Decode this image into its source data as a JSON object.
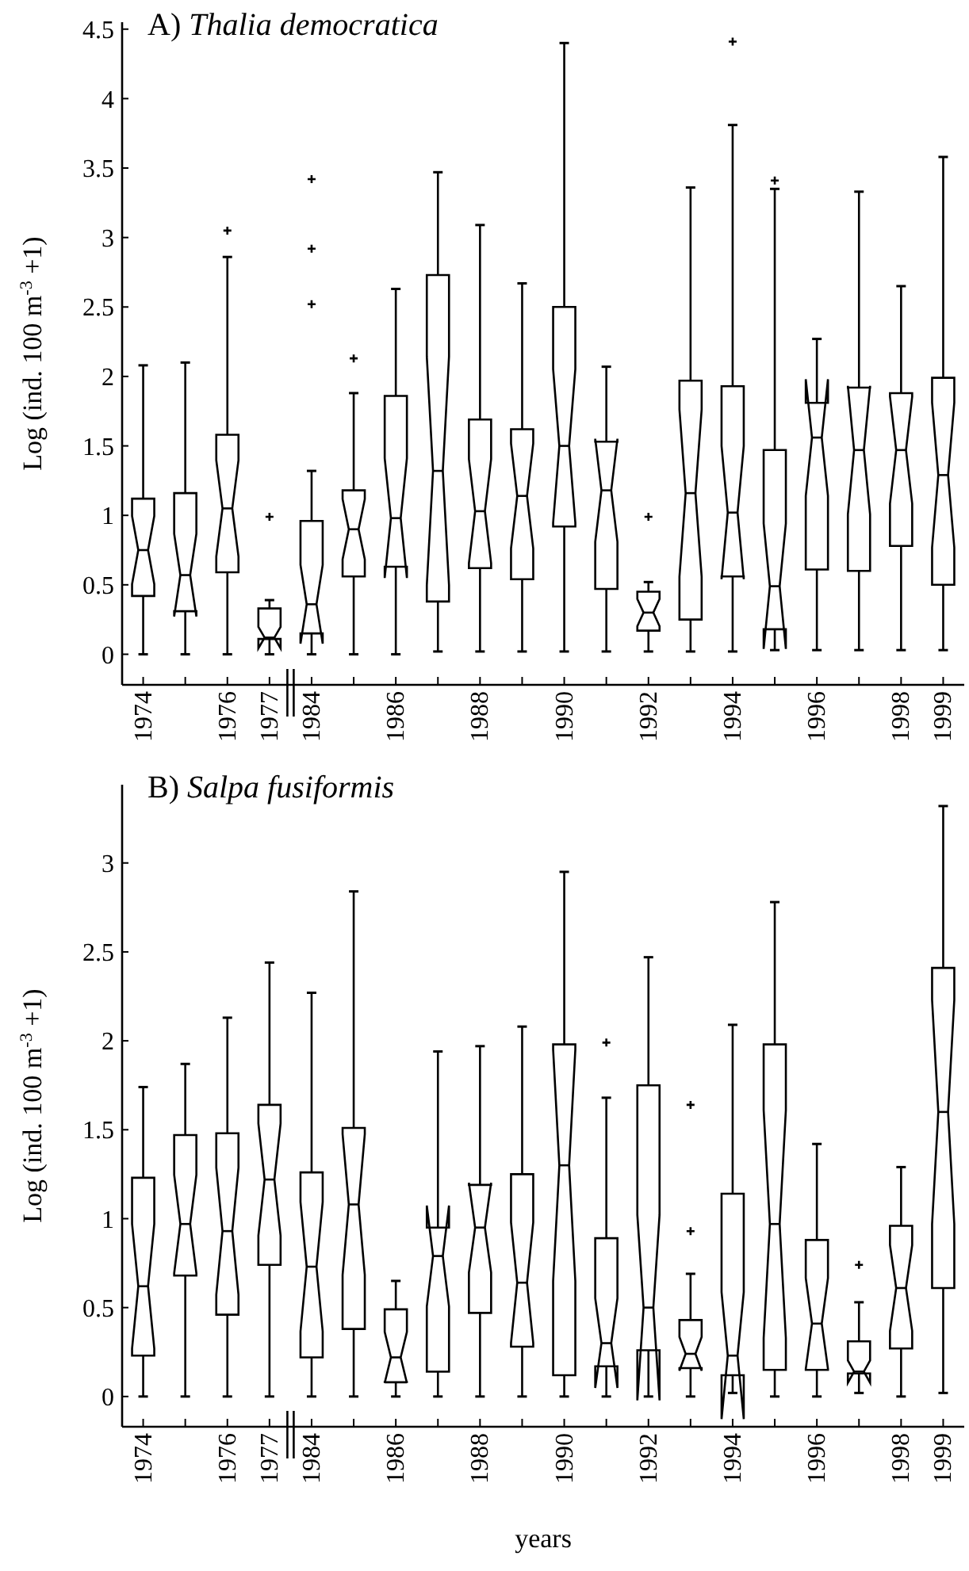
{
  "chart_data": [
    {
      "type": "box",
      "title": "A) Thalia democratica",
      "ylabel": "Log (ind. 100 m$^{-3}$ +1)",
      "categories": [
        "1974",
        null,
        "1976",
        "1977",
        "1984",
        null,
        "1986",
        null,
        "1988",
        null,
        "1990",
        null,
        "1992",
        null,
        "1994",
        null,
        "1996",
        null,
        "1998",
        "1999"
      ],
      "ylim": [
        -0.22,
        4.55
      ],
      "yticks": [
        0,
        0.5,
        1,
        1.5,
        2,
        2.5,
        3,
        3.5,
        4,
        4.5
      ],
      "boxes": [
        {
          "low": 0,
          "q1": 0.42,
          "median": 0.75,
          "q3": 1.12,
          "high": 2.08
        },
        {
          "low": 0,
          "q1": 0.31,
          "median": 0.57,
          "q3": 1.16,
          "high": 2.1
        },
        {
          "low": 0,
          "q1": 0.59,
          "median": 1.05,
          "q3": 1.58,
          "high": 2.86,
          "outliers": [
            3.05
          ]
        },
        {
          "low": 0,
          "q1": 0.11,
          "median": 0.12,
          "q3": 0.33,
          "high": 0.39,
          "outliers": [
            0.99
          ]
        },
        {
          "low": 0,
          "q1": 0.15,
          "median": 0.36,
          "q3": 0.96,
          "high": 1.32,
          "outliers": [
            2.52,
            2.92,
            3.42
          ]
        },
        {
          "low": 0,
          "q1": 0.56,
          "median": 0.9,
          "q3": 1.18,
          "high": 1.88,
          "outliers": [
            2.13
          ]
        },
        {
          "low": 0,
          "q1": 0.63,
          "median": 0.98,
          "q3": 1.86,
          "high": 2.63
        },
        {
          "low": 0.02,
          "q1": 0.38,
          "median": 1.32,
          "q3": 2.73,
          "high": 3.47
        },
        {
          "low": 0.02,
          "q1": 0.62,
          "median": 1.03,
          "q3": 1.69,
          "high": 3.09
        },
        {
          "low": 0.02,
          "q1": 0.54,
          "median": 1.14,
          "q3": 1.62,
          "high": 2.67
        },
        {
          "low": 0.02,
          "q1": 0.92,
          "median": 1.5,
          "q3": 2.5,
          "high": 4.4
        },
        {
          "low": 0.02,
          "q1": 0.47,
          "median": 1.18,
          "q3": 1.53,
          "high": 2.07
        },
        {
          "low": 0.02,
          "q1": 0.17,
          "median": 0.3,
          "q3": 0.45,
          "high": 0.52,
          "outliers": [
            0.99
          ]
        },
        {
          "low": 0.02,
          "q1": 0.25,
          "median": 1.16,
          "q3": 1.97,
          "high": 3.36
        },
        {
          "low": 0.02,
          "q1": 0.56,
          "median": 1.02,
          "q3": 1.93,
          "high": 3.81,
          "outliers": [
            4.41
          ]
        },
        {
          "low": 0.03,
          "q1": 0.18,
          "median": 0.49,
          "q3": 1.47,
          "high": 3.35,
          "outliers": [
            3.41
          ]
        },
        {
          "low": 0.03,
          "q1": 0.61,
          "median": 1.56,
          "q3": 1.81,
          "high": 2.27
        },
        {
          "low": 0.03,
          "q1": 0.6,
          "median": 1.47,
          "q3": 1.92,
          "high": 3.33
        },
        {
          "low": 0.03,
          "q1": 0.78,
          "median": 1.47,
          "q3": 1.88,
          "high": 2.65
        },
        {
          "low": 0.03,
          "q1": 0.5,
          "median": 1.29,
          "q3": 1.99,
          "high": 3.58
        }
      ]
    },
    {
      "type": "box",
      "title": "B) Salpa fusiformis",
      "ylabel": "Log (ind. 100 m$^{-3}$ +1)",
      "xlabel": "years",
      "categories": [
        "1974",
        null,
        "1976",
        "1977",
        "1984",
        null,
        "1986",
        null,
        "1988",
        null,
        "1990",
        null,
        "1992",
        null,
        "1994",
        null,
        "1996",
        null,
        "1998",
        "1999"
      ],
      "ylim": [
        -0.17,
        3.44
      ],
      "yticks": [
        0,
        0.5,
        1,
        1.5,
        2,
        2.5,
        3
      ],
      "boxes": [
        {
          "low": 0,
          "q1": 0.23,
          "median": 0.62,
          "q3": 1.23,
          "high": 1.74
        },
        {
          "low": 0,
          "q1": 0.68,
          "median": 0.97,
          "q3": 1.47,
          "high": 1.87
        },
        {
          "low": 0,
          "q1": 0.46,
          "median": 0.93,
          "q3": 1.48,
          "high": 2.13
        },
        {
          "low": 0,
          "q1": 0.74,
          "median": 1.22,
          "q3": 1.64,
          "high": 2.44
        },
        {
          "low": 0,
          "q1": 0.22,
          "median": 0.73,
          "q3": 1.26,
          "high": 2.27
        },
        {
          "low": 0,
          "q1": 0.38,
          "median": 1.08,
          "q3": 1.51,
          "high": 2.84
        },
        {
          "low": 0,
          "q1": 0.08,
          "median": 0.22,
          "q3": 0.49,
          "high": 0.65
        },
        {
          "low": 0,
          "q1": 0.14,
          "median": 0.79,
          "q3": 0.95,
          "high": 1.94
        },
        {
          "low": 0,
          "q1": 0.47,
          "median": 0.95,
          "q3": 1.19,
          "high": 1.97
        },
        {
          "low": 0,
          "q1": 0.28,
          "median": 0.64,
          "q3": 1.25,
          "high": 2.08
        },
        {
          "low": 0,
          "q1": 0.12,
          "median": 1.3,
          "q3": 1.98,
          "high": 2.95
        },
        {
          "low": 0,
          "q1": 0.17,
          "median": 0.3,
          "q3": 0.89,
          "high": 1.68,
          "outliers": [
            1.99
          ]
        },
        {
          "low": 0,
          "q1": 0.26,
          "median": 0.5,
          "q3": 1.75,
          "high": 2.47
        },
        {
          "low": 0,
          "q1": 0.16,
          "median": 0.24,
          "q3": 0.43,
          "high": 0.69,
          "outliers": [
            0.93,
            1.64
          ]
        },
        {
          "low": 0.02,
          "q1": 0.12,
          "median": 0.23,
          "q3": 1.14,
          "high": 2.09
        },
        {
          "low": 0,
          "q1": 0.15,
          "median": 0.97,
          "q3": 1.98,
          "high": 2.78
        },
        {
          "low": 0,
          "q1": 0.15,
          "median": 0.41,
          "q3": 0.88,
          "high": 1.42
        },
        {
          "low": 0.02,
          "q1": 0.13,
          "median": 0.14,
          "q3": 0.31,
          "high": 0.53,
          "outliers": [
            0.74
          ]
        },
        {
          "low": 0,
          "q1": 0.27,
          "median": 0.61,
          "q3": 0.96,
          "high": 1.29
        },
        {
          "low": 0.02,
          "q1": 0.61,
          "median": 1.6,
          "q3": 2.41,
          "high": 3.32
        }
      ]
    }
  ]
}
